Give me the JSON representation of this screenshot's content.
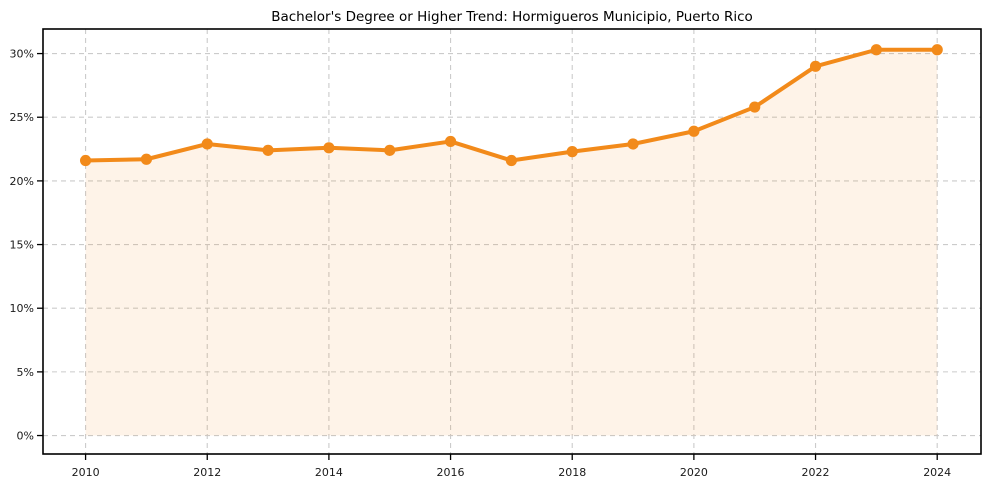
{
  "chart_data": {
    "type": "area",
    "title": "Bachelor's Degree or Higher Trend: Hormigueros Municipio, Puerto Rico",
    "x": [
      2010,
      2011,
      2012,
      2013,
      2014,
      2015,
      2016,
      2017,
      2018,
      2019,
      2020,
      2021,
      2022,
      2023,
      2024
    ],
    "values": [
      21.6,
      21.7,
      22.9,
      22.4,
      22.6,
      22.4,
      23.1,
      21.6,
      22.3,
      22.9,
      23.9,
      25.8,
      29.0,
      30.3,
      30.3
    ],
    "xlabel": "",
    "ylabel": "",
    "xlim": [
      2009.3,
      2024.72
    ],
    "ylim": [
      -1.45,
      31.93
    ],
    "xticks": [
      2010,
      2012,
      2014,
      2016,
      2018,
      2020,
      2022,
      2024
    ],
    "yticks": [
      0,
      5,
      10,
      15,
      20,
      25,
      30
    ],
    "ytick_suffix": "%",
    "baseline_value": 0,
    "grid": true,
    "grid_style": "dashed",
    "legend": "none",
    "colors": {
      "line": "#F28A1A",
      "marker": "#F28A1A",
      "fill": "rgba(242,138,26,0.10)",
      "grid": "#cbcbcb",
      "frame": "#000000",
      "tick": "#000000",
      "tick_label": "#1a1a1a",
      "title": "#000000",
      "background": "#ffffff"
    }
  }
}
